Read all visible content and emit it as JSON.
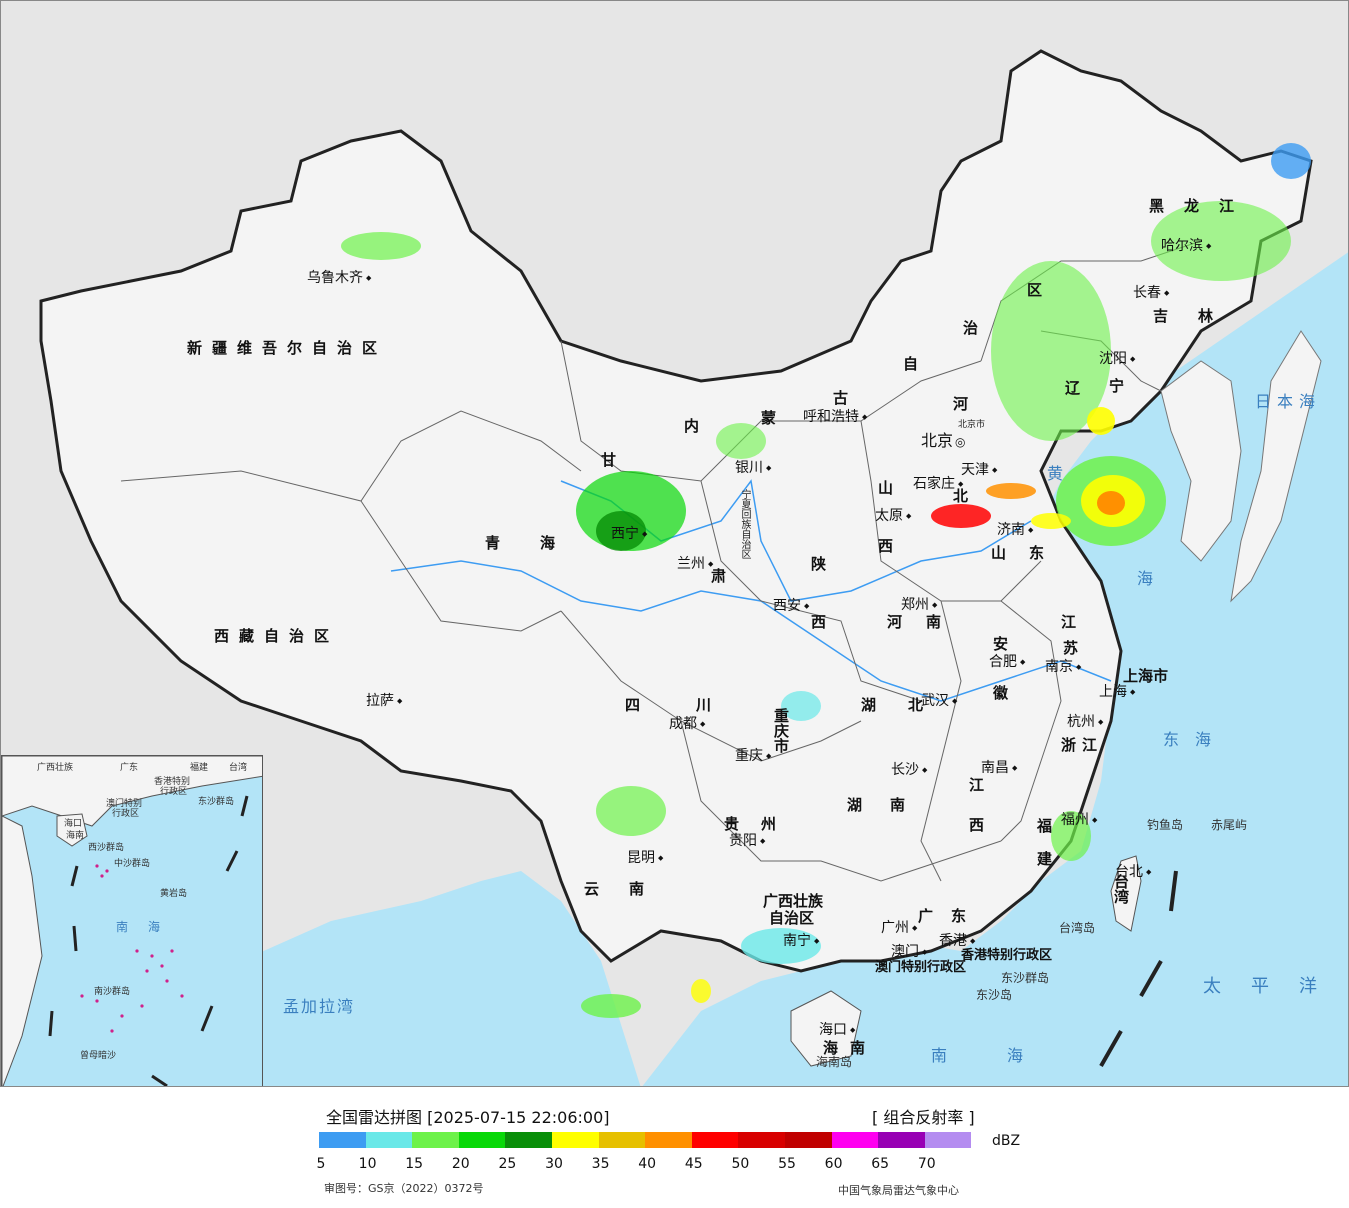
{
  "map": {
    "provinces": [
      "新疆维吾尔自治区",
      "西藏自治区",
      "青海",
      "甘",
      "肃",
      "内",
      "蒙",
      "古",
      "自",
      "治",
      "区",
      "黑龙江",
      "吉林",
      "辽",
      "宁",
      "河",
      "北",
      "山",
      "西",
      "山",
      "东",
      "陕",
      "西",
      "河南",
      "四川",
      "重庆市",
      "湖北",
      "湖南",
      "贵州",
      "云南",
      "广西壮族",
      "自治区",
      "广东",
      "江",
      "西",
      "浙江",
      "福",
      "建",
      "安",
      "徽",
      "江",
      "苏",
      "宁夏回族自治区",
      "上海市",
      "台湾",
      "海南"
    ],
    "cities": [
      "乌鲁木齐",
      "呼和浩特",
      "银川",
      "西宁",
      "兰州",
      "拉萨",
      "哈尔滨",
      "长春",
      "沈阳",
      "天津",
      "石家庄",
      "太原",
      "济南",
      "郑州",
      "西安",
      "合肥",
      "南京",
      "上海",
      "杭州",
      "武汉",
      "成都",
      "重庆",
      "长沙",
      "南昌",
      "福州",
      "贵阳",
      "昆明",
      "南宁",
      "广州",
      "澳门",
      "香港",
      "海口",
      "台北"
    ],
    "capital": "北京",
    "capital_small": "北京市",
    "seas": [
      "日本海",
      "黄",
      "海",
      "东海",
      "南海",
      "太平洋",
      "孟加拉湾"
    ],
    "islands": [
      "钓鱼岛",
      "赤尾屿",
      "台湾岛",
      "东沙群岛",
      "东沙岛",
      "海南岛"
    ],
    "sars": [
      "香港特别行政区",
      "澳门特别行政区"
    ]
  },
  "inset": {
    "labels": [
      "广西壮族",
      "广东",
      "福建",
      "台湾",
      "香港特别",
      "行政区",
      "澳门特别",
      "行政区",
      "东沙群岛",
      "海口",
      "海南",
      "西沙群岛",
      "中沙群岛",
      "黄岩岛",
      "南沙群岛",
      "曾母暗沙"
    ],
    "sea": "南海"
  },
  "footer": {
    "title": "全国雷达拼图 [2025-07-15 22:06:00]",
    "mode": "[ 组合反射率 ]",
    "unit": "dBZ",
    "approval": "审图号：GS京（2022）0372号",
    "source": "中国气象局雷达气象中心"
  },
  "legend": {
    "ticks": [
      "5",
      "10",
      "15",
      "20",
      "25",
      "30",
      "35",
      "40",
      "45",
      "50",
      "55",
      "60",
      "65",
      "70"
    ],
    "colors": [
      "#3d9cf2",
      "#6ae8e8",
      "#6df24a",
      "#08d808",
      "#088e08",
      "#ffff00",
      "#e6c000",
      "#ff9000",
      "#ff0000",
      "#d80000",
      "#c00000",
      "#ff00f0",
      "#9800b4",
      "#b48cf0"
    ]
  }
}
